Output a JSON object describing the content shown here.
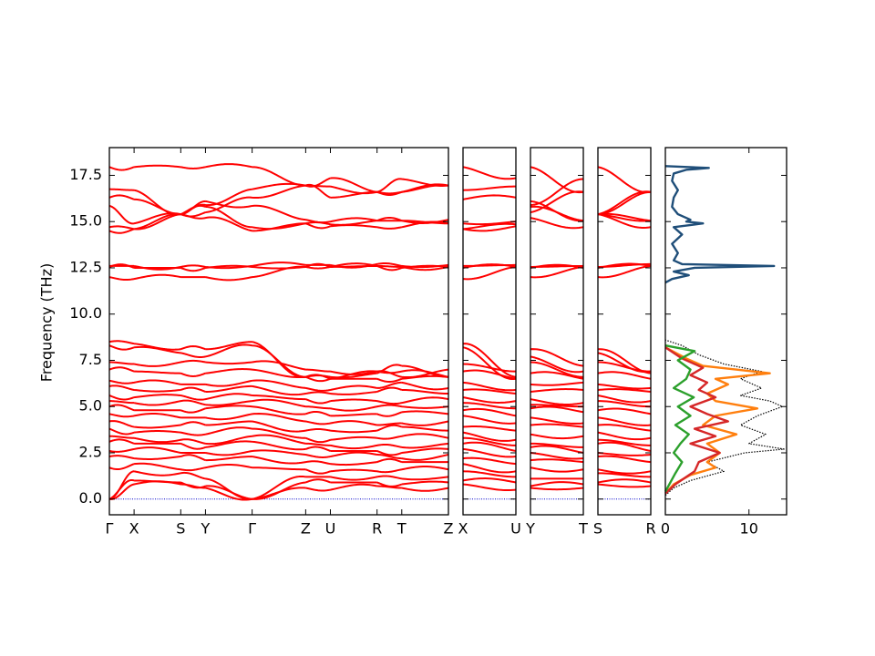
{
  "chart_data": {
    "type": "line",
    "ylabel": "Frequency (THz)",
    "ylim": [
      -0.85,
      19.0
    ],
    "yticks": [
      "0.0",
      "2.5",
      "5.0",
      "7.5",
      "10.0",
      "12.5",
      "15.0",
      "17.5"
    ],
    "ytick_values": [
      0.0,
      2.5,
      5.0,
      7.5,
      10.0,
      12.5,
      15.0,
      17.5
    ],
    "band_color": "#ff0000",
    "zero_line_color": "#0000cc",
    "panels": [
      {
        "id": "gx-syg-zurtz",
        "segments": [
          {
            "from": "Γ",
            "to": "X",
            "len": 0.9
          },
          {
            "from": "X",
            "to": "S",
            "len": 1.7
          },
          {
            "from": "S",
            "to": "Y",
            "len": 0.9
          },
          {
            "from": "Y",
            "to": "Γ",
            "len": 1.7
          },
          {
            "from": "Γ",
            "to": "Z",
            "len": 1.95
          },
          {
            "from": "Z",
            "to": "U",
            "len": 0.9
          },
          {
            "from": "U",
            "to": "R",
            "len": 1.7
          },
          {
            "from": "R",
            "to": "T",
            "len": 0.9
          },
          {
            "from": "T",
            "to": "Z",
            "len": 1.7
          }
        ],
        "tick_labels": [
          "Γ",
          "X",
          "S",
          "Y",
          "Γ",
          "Z",
          "U",
          "R",
          "T",
          "Z"
        ]
      },
      {
        "id": "xu",
        "segments": [
          {
            "from": "X",
            "to": "U",
            "len": 1.95
          }
        ],
        "tick_labels": [
          "X",
          "U"
        ]
      },
      {
        "id": "yt",
        "segments": [
          {
            "from": "Y",
            "to": "T",
            "len": 1.95
          }
        ],
        "tick_labels": [
          "Y",
          "T"
        ]
      },
      {
        "id": "sr",
        "segments": [
          {
            "from": "S",
            "to": "R",
            "len": 1.95
          }
        ],
        "tick_labels": [
          "S",
          "R"
        ]
      }
    ],
    "bands": [
      {
        "gamma": 17.95,
        "X": 17.95,
        "S": 17.95,
        "Y": 17.95,
        "Z": 16.95,
        "U": 17.35,
        "R": 16.6,
        "T": 16.6
      },
      {
        "gamma": 16.75,
        "X": 16.7,
        "S": 15.4,
        "Y": 15.9,
        "Z": 16.95,
        "U": 16.9,
        "R": 16.6,
        "T": 17.3
      },
      {
        "gamma": 16.3,
        "X": 16.2,
        "S": 15.4,
        "Y": 15.5,
        "Z": 16.95,
        "U": 16.3,
        "R": 16.6,
        "T": 16.6
      },
      {
        "gamma": 15.85,
        "X": 14.9,
        "S": 15.4,
        "Y": 16.1,
        "Z": 15.1,
        "U": 15.0,
        "R": 15.05,
        "T": 15.05
      },
      {
        "gamma": 14.7,
        "X": 14.6,
        "S": 15.4,
        "Y": 15.8,
        "Z": 14.9,
        "U": 14.85,
        "R": 15.05,
        "T": 15.05
      },
      {
        "gamma": 14.5,
        "X": 14.6,
        "S": 15.4,
        "Y": 15.2,
        "Z": 14.9,
        "U": 14.75,
        "R": 14.7,
        "T": 14.7
      },
      {
        "gamma": 12.6,
        "X": 12.6,
        "S": 12.55,
        "Y": 12.55,
        "Z": 12.65,
        "U": 12.65,
        "R": 12.7,
        "T": 12.6
      },
      {
        "gamma": 12.55,
        "X": 12.5,
        "S": 12.5,
        "Y": 12.5,
        "Z": 12.55,
        "U": 12.55,
        "R": 12.6,
        "T": 12.5
      },
      {
        "gamma": 12.0,
        "X": 11.9,
        "S": 12.0,
        "Y": 12.0,
        "Z": 12.55,
        "U": 12.55,
        "R": 12.6,
        "T": 12.55
      },
      {
        "gamma": 8.5,
        "X": 8.4,
        "S": 8.1,
        "Y": 8.1,
        "Z": 6.6,
        "U": 6.6,
        "R": 6.8,
        "T": 7.2
      },
      {
        "gamma": 8.3,
        "X": 8.2,
        "S": 7.9,
        "Y": 7.7,
        "Z": 6.6,
        "U": 6.5,
        "R": 6.9,
        "T": 6.9
      },
      {
        "gamma": 7.4,
        "X": 7.3,
        "S": 7.4,
        "Y": 7.4,
        "Z": 7.0,
        "U": 6.9,
        "R": 6.9,
        "T": 6.6
      },
      {
        "gamma": 7.0,
        "X": 6.9,
        "S": 6.8,
        "Y": 6.8,
        "Z": 6.6,
        "U": 6.5,
        "R": 6.5,
        "T": 6.5
      },
      {
        "gamma": 6.4,
        "X": 6.3,
        "S": 6.2,
        "Y": 6.2,
        "Z": 6.0,
        "U": 5.9,
        "R": 6.0,
        "T": 6.3
      },
      {
        "gamma": 6.1,
        "X": 5.9,
        "S": 5.9,
        "Y": 5.8,
        "Z": 5.7,
        "U": 5.7,
        "R": 5.8,
        "T": 5.9
      },
      {
        "gamma": 5.6,
        "X": 5.5,
        "S": 5.6,
        "Y": 5.4,
        "Z": 5.4,
        "U": 5.3,
        "R": 5.3,
        "T": 5.2
      },
      {
        "gamma": 5.3,
        "X": 5.2,
        "S": 5.3,
        "Y": 5.1,
        "Z": 5.0,
        "U": 4.9,
        "R": 5.0,
        "T": 5.0
      },
      {
        "gamma": 5.0,
        "X": 4.8,
        "S": 4.8,
        "Y": 4.9,
        "Z": 4.6,
        "U": 4.5,
        "R": 4.6,
        "T": 4.7
      },
      {
        "gamma": 4.6,
        "X": 4.5,
        "S": 4.4,
        "Y": 4.4,
        "Z": 4.2,
        "U": 4.1,
        "R": 4.0,
        "T": 4.1
      },
      {
        "gamma": 4.2,
        "X": 3.9,
        "S": 4.0,
        "Y": 4.0,
        "Z": 3.7,
        "U": 3.7,
        "R": 3.7,
        "T": 3.9
      },
      {
        "gamma": 3.8,
        "X": 3.6,
        "S": 3.6,
        "Y": 3.5,
        "Z": 3.3,
        "U": 3.2,
        "R": 3.3,
        "T": 3.4
      },
      {
        "gamma": 3.4,
        "X": 3.3,
        "S": 3.2,
        "Y": 3.0,
        "Z": 3.0,
        "U": 2.9,
        "R": 2.9,
        "T": 2.8
      },
      {
        "gamma": 3.1,
        "X": 3.0,
        "S": 3.0,
        "Y": 2.8,
        "Z": 2.7,
        "U": 2.6,
        "R": 2.6,
        "T": 2.5
      },
      {
        "gamma": 2.6,
        "X": 2.7,
        "S": 2.5,
        "Y": 2.5,
        "Z": 2.4,
        "U": 2.3,
        "R": 2.4,
        "T": 2.2
      },
      {
        "gamma": 2.3,
        "X": 2.2,
        "S": 2.3,
        "Y": 2.1,
        "Z": 2.0,
        "U": 1.9,
        "R": 2.0,
        "T": 2.0
      },
      {
        "gamma": 1.7,
        "X": 1.9,
        "S": 1.6,
        "Y": 1.7,
        "Z": 1.6,
        "U": 1.5,
        "R": 1.5,
        "T": 1.6
      },
      {
        "gamma": 0.0,
        "X": 1.5,
        "S": 1.4,
        "Y": 1.1,
        "Z": 1.2,
        "U": 1.2,
        "R": 1.2,
        "T": 1.1
      },
      {
        "gamma": 0.0,
        "X": 1.0,
        "S": 0.9,
        "Y": 0.7,
        "Z": 0.9,
        "U": 0.9,
        "R": 0.9,
        "T": 0.8
      },
      {
        "gamma": 0.0,
        "X": 0.8,
        "S": 0.8,
        "Y": 0.6,
        "Z": 0.6,
        "U": 0.5,
        "R": 0.7,
        "T": 0.6
      }
    ],
    "dos": {
      "xlim": [
        0,
        14.5
      ],
      "xticks": [
        "0",
        "10"
      ],
      "xtick_values": [
        0,
        10
      ],
      "series": [
        {
          "color": "#000000",
          "style": "dotted",
          "freq": [
            0.2,
            0.6,
            1.0,
            1.5,
            2.0,
            2.5,
            2.7,
            3.0,
            3.5,
            4.0,
            4.5,
            5.0,
            5.3,
            5.6,
            6.0,
            6.5,
            6.9,
            7.3,
            7.8,
            8.3,
            8.6
          ],
          "dos": [
            0.0,
            1.0,
            3.0,
            7.0,
            5.0,
            9.5,
            14.2,
            10.0,
            12.0,
            9.0,
            11.0,
            14.0,
            12.5,
            9.0,
            11.5,
            9.0,
            11.5,
            7.0,
            4.0,
            2.0,
            0.0
          ]
        },
        {
          "color": "#ff7f0e",
          "style": "solid",
          "freq": [
            0.3,
            0.8,
            1.3,
            1.7,
            2.0,
            2.5,
            3.0,
            3.5,
            4.0,
            4.5,
            4.9,
            5.3,
            5.7,
            6.2,
            6.5,
            6.8,
            7.2,
            7.6,
            8.2
          ],
          "dos": [
            0.0,
            1.0,
            3.0,
            6.0,
            5.0,
            6.5,
            5.0,
            8.5,
            4.5,
            6.0,
            11.0,
            6.0,
            5.0,
            7.5,
            6.0,
            12.5,
            4.5,
            2.5,
            0.0
          ]
        },
        {
          "color": "#d62728",
          "style": "solid",
          "freq": [
            0.3,
            0.8,
            1.5,
            2.0,
            2.5,
            3.0,
            3.4,
            3.8,
            4.2,
            4.6,
            5.0,
            5.5,
            5.9,
            6.3,
            6.7,
            7.1,
            7.6,
            8.2
          ],
          "dos": [
            0.0,
            1.2,
            3.5,
            4.0,
            6.5,
            3.0,
            6.0,
            3.5,
            7.5,
            5.0,
            3.0,
            6.0,
            4.0,
            5.0,
            3.0,
            4.5,
            2.0,
            0.0
          ]
        },
        {
          "color": "#2ca02c",
          "style": "solid",
          "freq": [
            0.4,
            0.9,
            1.4,
            2.0,
            2.5,
            3.0,
            3.5,
            4.0,
            4.5,
            5.0,
            5.5,
            6.0,
            6.5,
            7.0,
            7.5,
            8.0,
            8.3
          ],
          "dos": [
            0.0,
            0.6,
            1.2,
            2.0,
            1.0,
            1.8,
            2.8,
            1.2,
            3.0,
            1.5,
            3.4,
            1.0,
            2.5,
            3.0,
            1.5,
            3.5,
            0.0
          ]
        },
        {
          "color": "#1f4e79",
          "style": "solid",
          "freq": [
            11.7,
            11.9,
            12.1,
            12.3,
            12.5,
            12.6,
            12.7,
            12.9,
            13.3,
            13.8,
            14.3,
            14.7,
            14.9,
            15.0,
            15.1,
            15.4,
            15.8,
            16.3,
            16.7,
            17.2,
            17.6,
            17.8,
            17.9,
            18.0
          ],
          "dos": [
            0.0,
            0.8,
            2.8,
            1.0,
            3.5,
            13.0,
            2.0,
            1.0,
            1.5,
            0.8,
            2.0,
            1.0,
            4.5,
            2.5,
            3.0,
            1.5,
            0.8,
            1.0,
            1.5,
            0.8,
            1.0,
            2.5,
            5.2,
            0.0
          ]
        }
      ]
    }
  }
}
